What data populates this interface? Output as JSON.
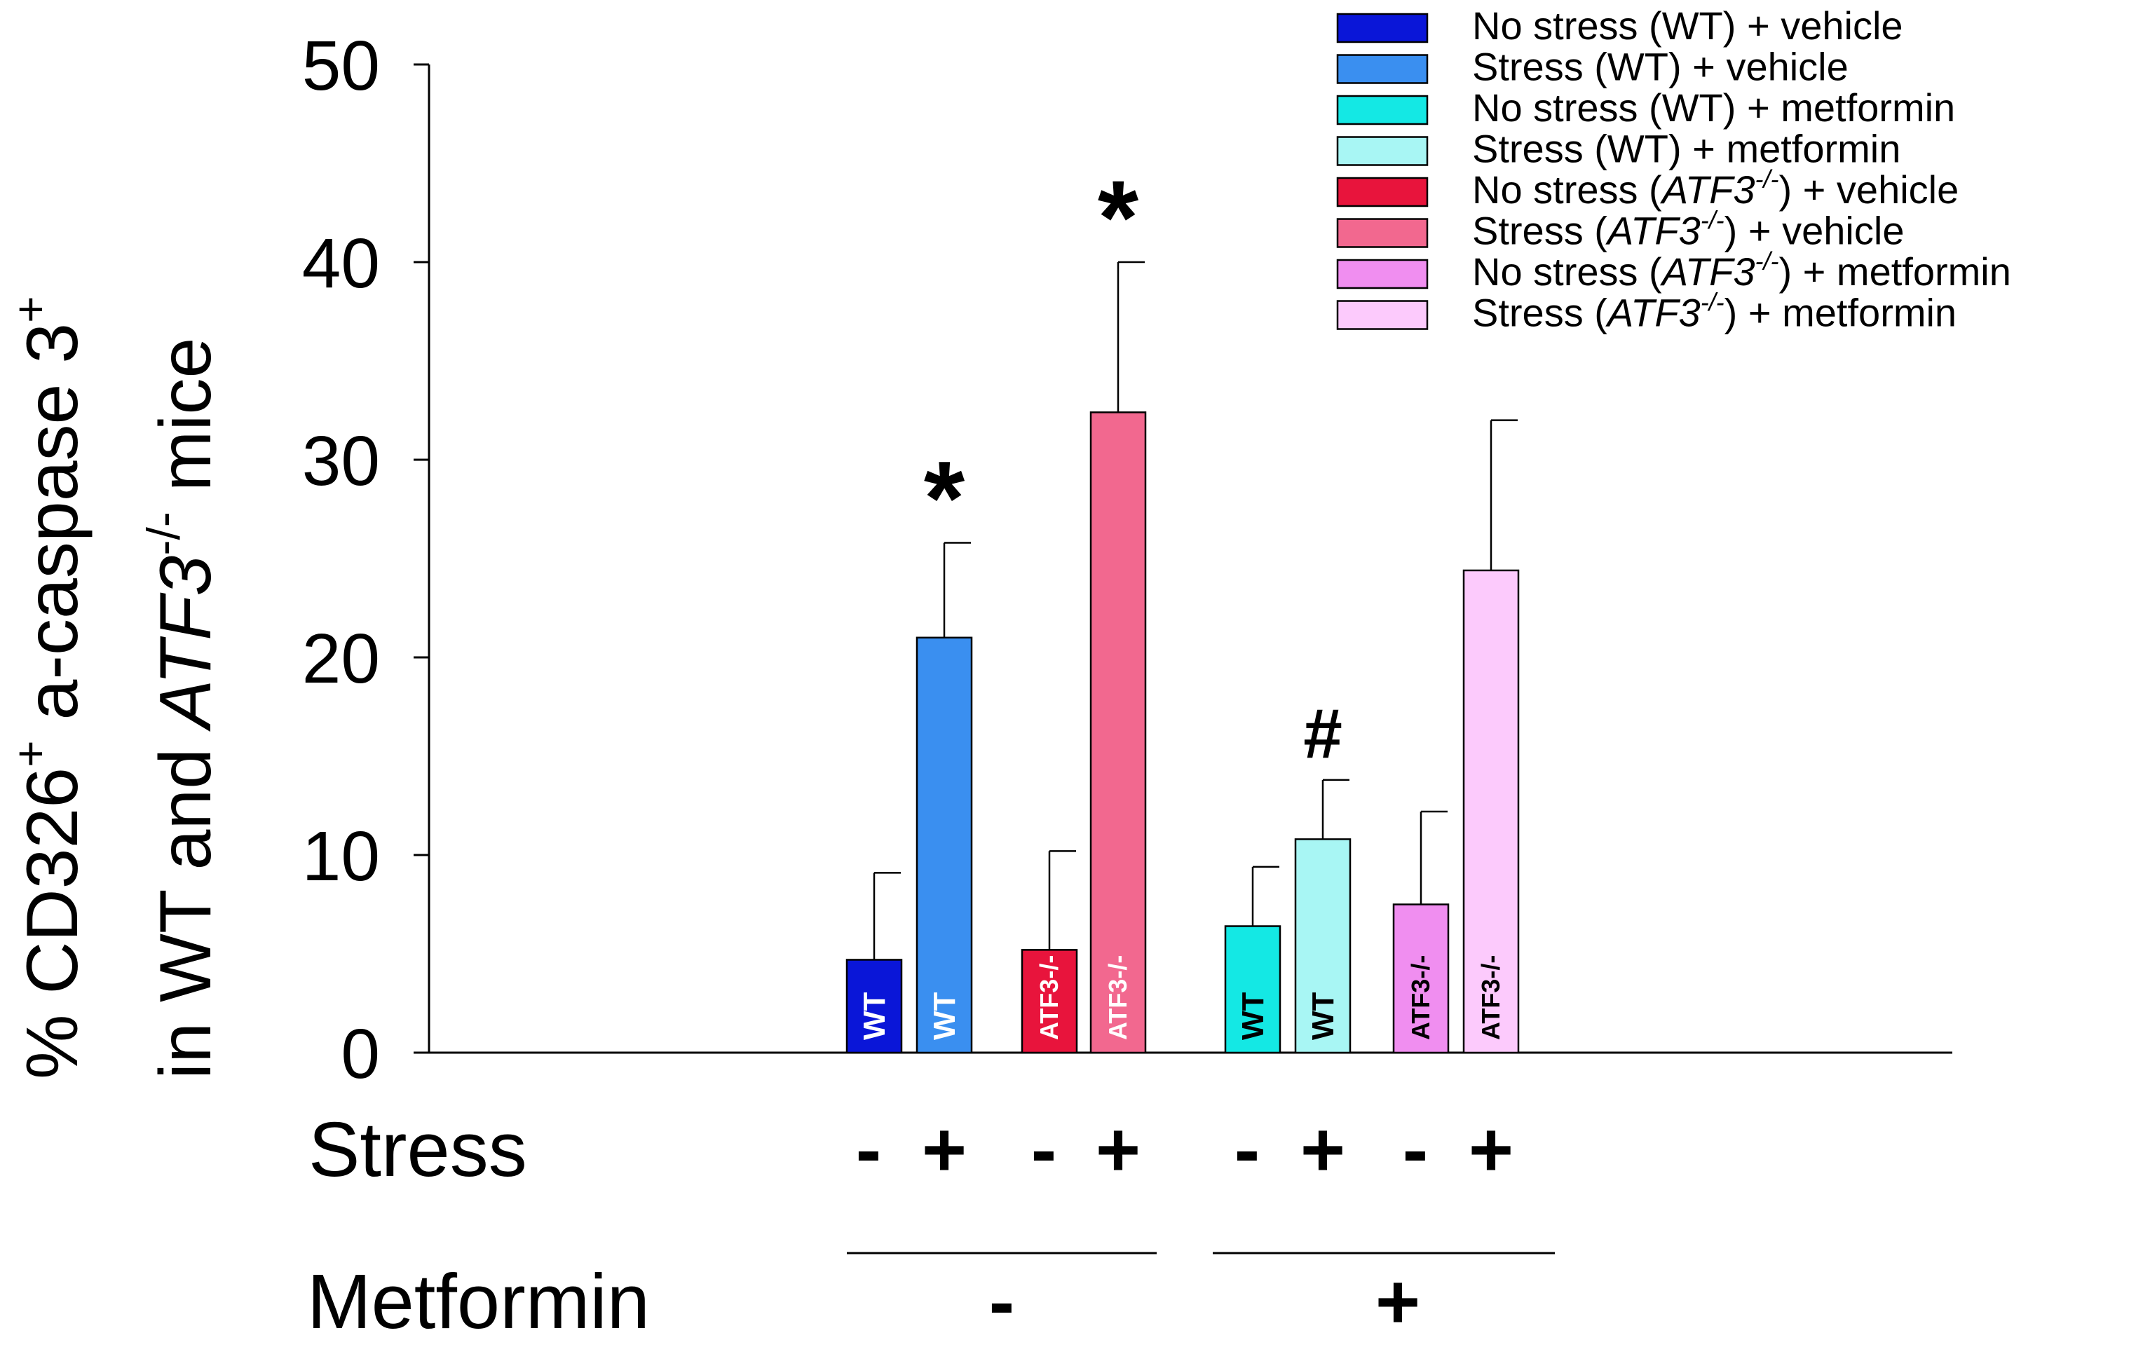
{
  "chart_data": {
    "type": "bar",
    "title": "",
    "ylabel_line1": "% CD326",
    "ylabel_line1_sup1": "+",
    "ylabel_line1_mid": " a-caspase 3",
    "ylabel_line1_sup2": "+",
    "ylabel_line2_pre": "in WT and ",
    "ylabel_line2_gene": "ATF3",
    "ylabel_line2_sup": "-/-",
    "ylabel_line2_post": " mice",
    "ylim": [
      0,
      50
    ],
    "yticks": [
      "0",
      "10",
      "20",
      "30",
      "40",
      "50"
    ],
    "ytick_values": [
      0,
      10,
      20,
      30,
      40,
      50
    ],
    "bars": [
      {
        "label": "WT",
        "value": 4.7,
        "error": 4.4,
        "color": "#0a16d8",
        "label_color": "#ffffff",
        "stress": "-",
        "annotation": ""
      },
      {
        "label": "WT",
        "value": 21.0,
        "error": 4.8,
        "color": "#3a8ff0",
        "label_color": "#ffffff",
        "stress": "+",
        "annotation": "*"
      },
      {
        "label": "ATF3-/-",
        "value": 5.2,
        "error": 5.0,
        "color": "#e8143c",
        "label_color": "#ffffff",
        "stress": "-",
        "annotation": ""
      },
      {
        "label": "ATF3-/-",
        "value": 32.4,
        "error": 7.6,
        "color": "#f2688f",
        "label_color": "#ffffff",
        "stress": "+",
        "annotation": "*"
      },
      {
        "label": "WT",
        "value": 6.4,
        "error": 3.0,
        "color": "#14e8e4",
        "label_color": "#000000",
        "stress": "-",
        "annotation": ""
      },
      {
        "label": "WT",
        "value": 10.8,
        "error": 3.0,
        "color": "#a8f6f4",
        "label_color": "#000000",
        "stress": "+",
        "annotation": "#"
      },
      {
        "label": "ATF3-/-",
        "value": 7.5,
        "error": 4.7,
        "color": "#f08ef0",
        "label_color": "#000000",
        "stress": "-",
        "annotation": ""
      },
      {
        "label": "ATF3-/-",
        "value": 24.4,
        "error": 7.6,
        "color": "#fccafc",
        "label_color": "#000000",
        "stress": "+",
        "annotation": ""
      }
    ],
    "legend": [
      {
        "pre": "No stress (WT) + vehicle",
        "gene": "",
        "sup": "",
        "post": "",
        "color": "#0a16d8"
      },
      {
        "pre": "Stress (WT) + vehicle",
        "gene": "",
        "sup": "",
        "post": "",
        "color": "#3a8ff0"
      },
      {
        "pre": "No stress (WT) + metformin",
        "gene": "",
        "sup": "",
        "post": "",
        "color": "#14e8e4"
      },
      {
        "pre": "Stress (WT) + metformin",
        "gene": "",
        "sup": "",
        "post": "",
        "color": "#a8f6f4"
      },
      {
        "pre": "No stress (",
        "gene": "ATF3",
        "sup": "-/-",
        "post": ") + vehicle",
        "color": "#e8143c"
      },
      {
        "pre": "Stress (",
        "gene": "ATF3",
        "sup": "-/-",
        "post": ") + vehicle",
        "color": "#f2688f"
      },
      {
        "pre": "No stress (",
        "gene": "ATF3",
        "sup": "-/-",
        "post": ") + metformin",
        "color": "#f08ef0"
      },
      {
        "pre": "Stress (",
        "gene": "ATF3",
        "sup": "-/-",
        "post": ") + metformin",
        "color": "#fccafc"
      }
    ],
    "legend_position": "top-right",
    "row_labels": {
      "stress": "Stress",
      "metformin": "Metformin"
    },
    "metformin_groups": [
      {
        "sign": "-",
        "bars": [
          0,
          1,
          2,
          3
        ]
      },
      {
        "sign": "+",
        "bars": [
          4,
          5,
          6,
          7
        ]
      }
    ]
  }
}
